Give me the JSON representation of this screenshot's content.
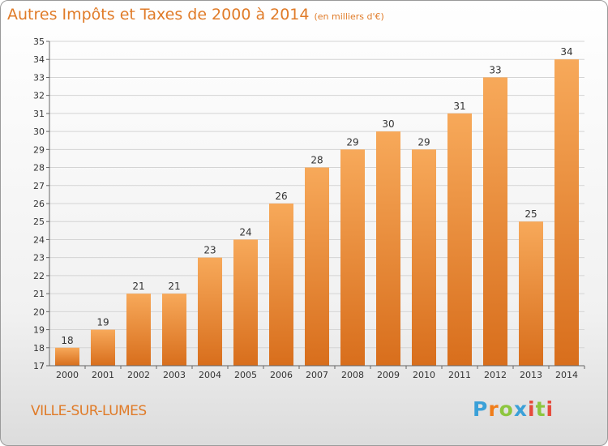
{
  "title": "Autres Impôts et Taxes de 2000 à 2014",
  "unit": "(en milliers d'€)",
  "city": "VILLE-SUR-LUMES",
  "logo": "Proxiti",
  "colors": {
    "bar_light": "#f7a95a",
    "bar_dark": "#d86e1c",
    "title": "#e07b28"
  },
  "chart_data": {
    "type": "bar",
    "categories": [
      "2000",
      "2001",
      "2002",
      "2003",
      "2004",
      "2005",
      "2006",
      "2007",
      "2008",
      "2009",
      "2010",
      "2011",
      "2012",
      "2013",
      "2014"
    ],
    "values": [
      18,
      19,
      21,
      21,
      23,
      24,
      26,
      28,
      29,
      30,
      29,
      31,
      33,
      25,
      34
    ],
    "ylim": [
      17,
      35
    ],
    "yticks": [
      17,
      18,
      19,
      20,
      21,
      22,
      23,
      24,
      25,
      26,
      27,
      28,
      29,
      30,
      31,
      32,
      33,
      34,
      35
    ],
    "grid": true,
    "data_labels": true
  }
}
